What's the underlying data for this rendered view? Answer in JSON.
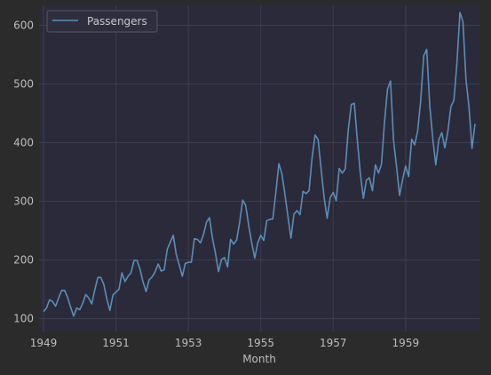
{
  "chart_data": {
    "type": "line",
    "title": "",
    "xlabel": "Month",
    "ylabel": "",
    "x_start": "1949-01",
    "x_end": "1960-12",
    "x_ticks": [
      "1949",
      "1951",
      "1953",
      "1955",
      "1957",
      "1959"
    ],
    "y_ticks": [
      100,
      200,
      300,
      400,
      500,
      600
    ],
    "ylim": [
      78,
      634
    ],
    "grid": true,
    "legend_position": "top-left",
    "series": [
      {
        "name": "Passengers",
        "color": "#5b8db8",
        "values": [
          112,
          118,
          132,
          129,
          121,
          135,
          148,
          148,
          136,
          119,
          104,
          118,
          115,
          126,
          141,
          135,
          125,
          149,
          170,
          170,
          158,
          133,
          114,
          140,
          145,
          150,
          178,
          163,
          172,
          178,
          199,
          199,
          184,
          162,
          146,
          166,
          171,
          180,
          193,
          181,
          183,
          218,
          230,
          242,
          209,
          191,
          172,
          194,
          196,
          196,
          236,
          235,
          229,
          243,
          264,
          272,
          237,
          211,
          180,
          201,
          204,
          188,
          235,
          227,
          234,
          264,
          302,
          293,
          259,
          229,
          203,
          229,
          242,
          233,
          267,
          269,
          270,
          315,
          364,
          347,
          312,
          274,
          237,
          278,
          284,
          277,
          317,
          313,
          318,
          374,
          413,
          405,
          355,
          306,
          271,
          306,
          315,
          301,
          356,
          348,
          355,
          422,
          465,
          467,
          404,
          347,
          305,
          336,
          340,
          318,
          362,
          348,
          363,
          435,
          491,
          505,
          404,
          359,
          310,
          337,
          360,
          342,
          406,
          396,
          420,
          472,
          548,
          559,
          463,
          407,
          362,
          405,
          417,
          391,
          419,
          461,
          472,
          535,
          622,
          606,
          508,
          461,
          390,
          432
        ]
      }
    ],
    "colors": {
      "background": "#2b2b2b",
      "plot_background": "#2a2a3a",
      "grid": "#3d3d50",
      "text": "#bdbdbd"
    }
  }
}
